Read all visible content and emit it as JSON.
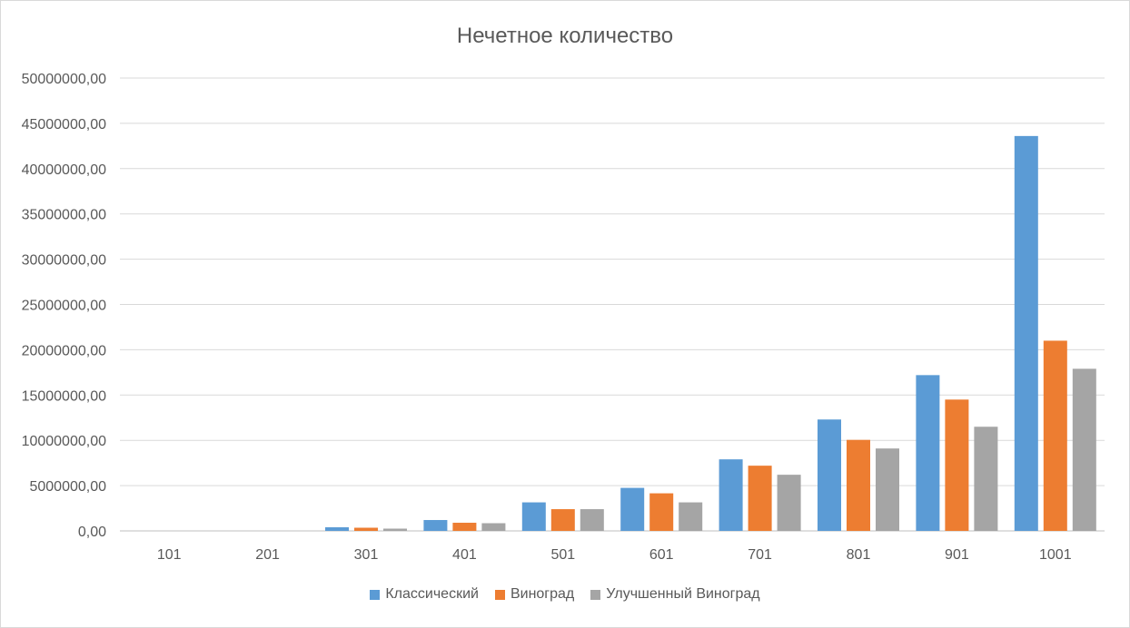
{
  "chart_data": {
    "type": "bar",
    "title": "Нечетное количество",
    "categories": [
      "101",
      "201",
      "301",
      "401",
      "501",
      "601",
      "701",
      "801",
      "901",
      "1001"
    ],
    "series": [
      {
        "name": "Классический",
        "color": "#5b9bd5",
        "values": [
          0,
          0,
          400000,
          1200000,
          3150000,
          4750000,
          7900000,
          12300000,
          17200000,
          43600000
        ]
      },
      {
        "name": "Виноград",
        "color": "#ed7d31",
        "values": [
          0,
          0,
          350000,
          900000,
          2400000,
          4150000,
          7200000,
          10050000,
          14500000,
          21000000
        ]
      },
      {
        "name": "Улучшенный Виноград",
        "color": "#a5a5a5",
        "values": [
          0,
          0,
          250000,
          850000,
          2400000,
          3150000,
          6200000,
          9100000,
          11500000,
          17900000
        ]
      }
    ],
    "ylim": [
      0,
      50000000
    ],
    "yticks": [
      "0,00",
      "5000000,00",
      "10000000,00",
      "15000000,00",
      "20000000,00",
      "25000000,00",
      "30000000,00",
      "35000000,00",
      "40000000,00",
      "45000000,00",
      "50000000,00"
    ],
    "grid": true,
    "legend_position": "bottom"
  }
}
